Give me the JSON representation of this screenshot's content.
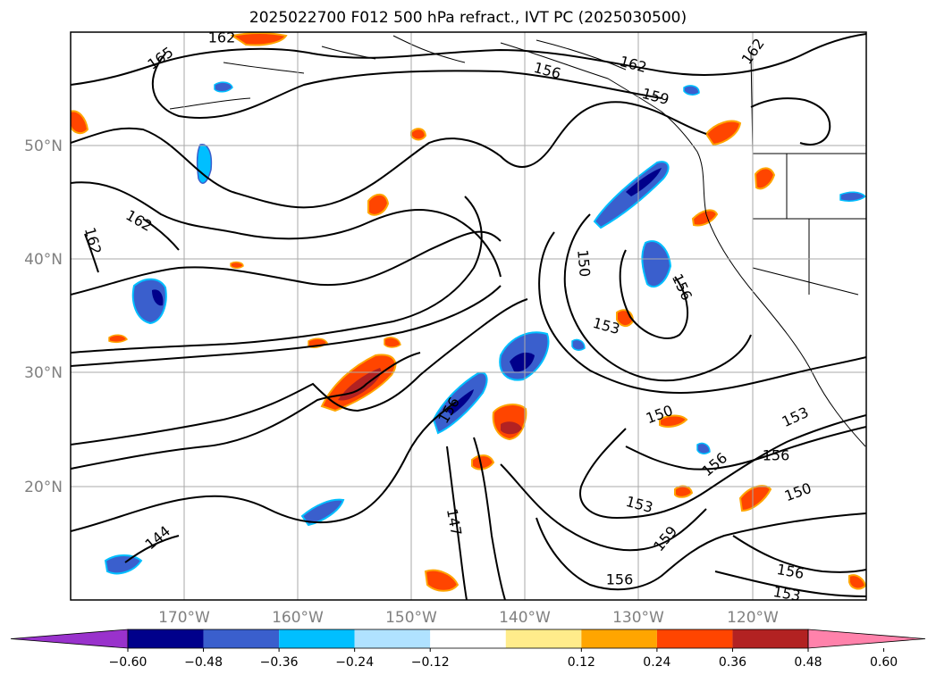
{
  "title": "2025022700 F012 500 hPa refract., IVT PC (2025030500)",
  "map": {
    "lat_labels": [
      "50°N",
      "40°N",
      "30°N",
      "20°N"
    ],
    "lon_labels": [
      "170°W",
      "160°W",
      "150°W",
      "140°W",
      "130°W",
      "120°W"
    ],
    "contour_labels": [
      "165",
      "162",
      "156",
      "162",
      "159",
      "162",
      "162",
      "162",
      "150",
      "156",
      "153",
      "150",
      "153",
      "156",
      "156",
      "153",
      "156",
      "150",
      "156",
      "159",
      "147",
      "144",
      "156",
      "153",
      "159"
    ]
  },
  "colorbar": {
    "colors": [
      "#9932cc",
      "#00008b",
      "#3a5fcd",
      "#00bfff",
      "#b0e2ff",
      "#ffffff",
      "#ffec8b",
      "#ffa500",
      "#ff4500",
      "#b22222",
      "#ff82ab"
    ],
    "tick_labels": [
      "−0.60",
      "−0.48",
      "−0.36",
      "−0.24",
      "−0.12",
      "0.12",
      "0.24",
      "0.36",
      "0.48",
      "0.60"
    ]
  }
}
